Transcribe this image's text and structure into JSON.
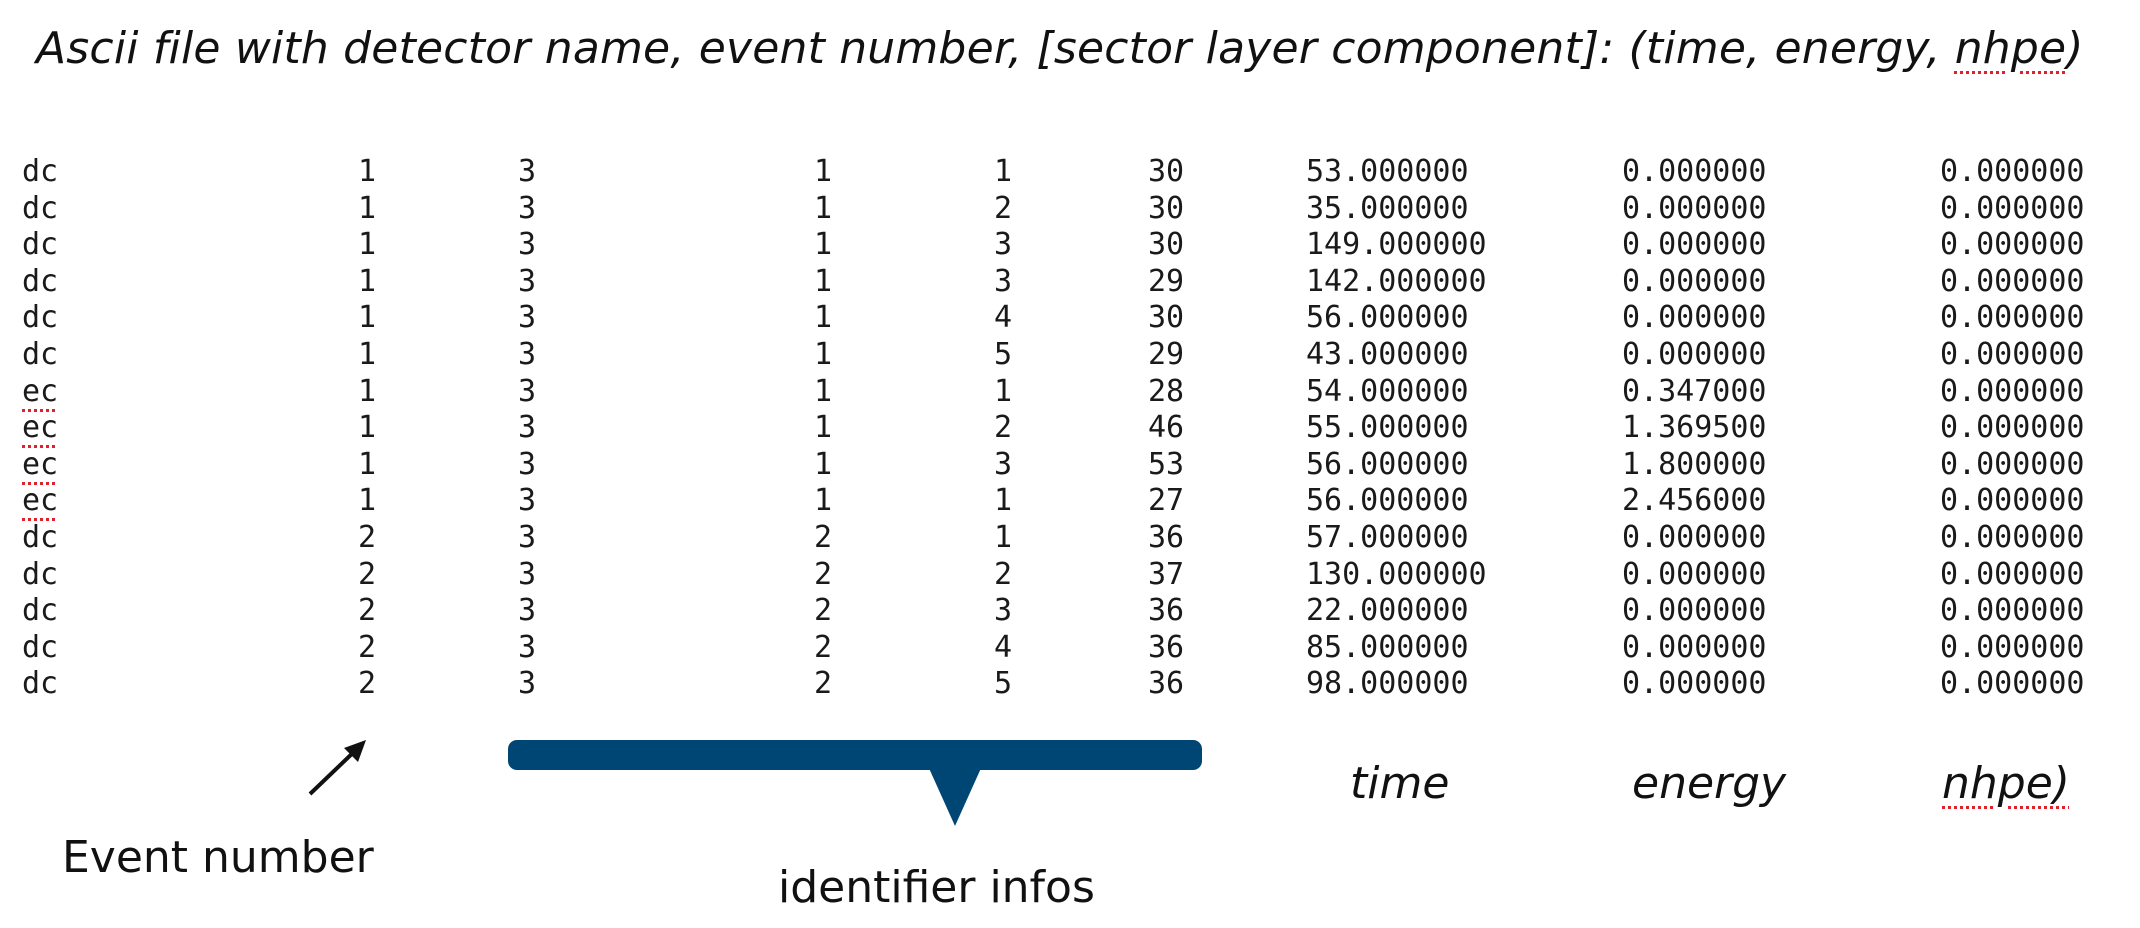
{
  "heading": {
    "prefix": "Ascii file with detector name, event number, [sector layer component]:  (time, energy, ",
    "squiggle_word": "nhpe",
    "suffix": ")"
  },
  "rows": [
    {
      "detector": "dc",
      "event": "1",
      "sector": "3",
      "layer": "1",
      "component": "1",
      "adc": "30",
      "time": "53.000000",
      "energy": "0.000000",
      "nhpe": "0.000000"
    },
    {
      "detector": "dc",
      "event": "1",
      "sector": "3",
      "layer": "1",
      "component": "2",
      "adc": "30",
      "time": "35.000000",
      "energy": "0.000000",
      "nhpe": "0.000000"
    },
    {
      "detector": "dc",
      "event": "1",
      "sector": "3",
      "layer": "1",
      "component": "3",
      "adc": "30",
      "time": "149.000000",
      "energy": "0.000000",
      "nhpe": "0.000000"
    },
    {
      "detector": "dc",
      "event": "1",
      "sector": "3",
      "layer": "1",
      "component": "3",
      "adc": "29",
      "time": "142.000000",
      "energy": "0.000000",
      "nhpe": "0.000000"
    },
    {
      "detector": "dc",
      "event": "1",
      "sector": "3",
      "layer": "1",
      "component": "4",
      "adc": "30",
      "time": "56.000000",
      "energy": "0.000000",
      "nhpe": "0.000000"
    },
    {
      "detector": "dc",
      "event": "1",
      "sector": "3",
      "layer": "1",
      "component": "5",
      "adc": "29",
      "time": "43.000000",
      "energy": "0.000000",
      "nhpe": "0.000000"
    },
    {
      "detector": "ec",
      "event": "1",
      "sector": "3",
      "layer": "1",
      "component": "1",
      "adc": "28",
      "time": "54.000000",
      "energy": "0.347000",
      "nhpe": "0.000000"
    },
    {
      "detector": "ec",
      "event": "1",
      "sector": "3",
      "layer": "1",
      "component": "2",
      "adc": "46",
      "time": "55.000000",
      "energy": "1.369500",
      "nhpe": "0.000000"
    },
    {
      "detector": "ec",
      "event": "1",
      "sector": "3",
      "layer": "1",
      "component": "3",
      "adc": "53",
      "time": "56.000000",
      "energy": "1.800000",
      "nhpe": "0.000000"
    },
    {
      "detector": "ec",
      "event": "1",
      "sector": "3",
      "layer": "1",
      "component": "1",
      "adc": "27",
      "time": "56.000000",
      "energy": "2.456000",
      "nhpe": "0.000000"
    },
    {
      "detector": "dc",
      "event": "2",
      "sector": "3",
      "layer": "2",
      "component": "1",
      "adc": "36",
      "time": "57.000000",
      "energy": "0.000000",
      "nhpe": "0.000000"
    },
    {
      "detector": "dc",
      "event": "2",
      "sector": "3",
      "layer": "2",
      "component": "2",
      "adc": "37",
      "time": "130.000000",
      "energy": "0.000000",
      "nhpe": "0.000000"
    },
    {
      "detector": "dc",
      "event": "2",
      "sector": "3",
      "layer": "2",
      "component": "3",
      "adc": "36",
      "time": "22.000000",
      "energy": "0.000000",
      "nhpe": "0.000000"
    },
    {
      "detector": "dc",
      "event": "2",
      "sector": "3",
      "layer": "2",
      "component": "4",
      "adc": "36",
      "time": "85.000000",
      "energy": "0.000000",
      "nhpe": "0.000000"
    },
    {
      "detector": "dc",
      "event": "2",
      "sector": "3",
      "layer": "2",
      "component": "5",
      "adc": "36",
      "time": "98.000000",
      "energy": "0.000000",
      "nhpe": "0.000000"
    }
  ],
  "annotations": {
    "event_number": "Event number",
    "identifier_infos": "identifier infos",
    "time": "time",
    "energy": "energy",
    "nhpe": "nhpe)"
  },
  "colors": {
    "bracket": "#004674",
    "spellcheck_underline": "#e0202a",
    "text": "#111111"
  },
  "icons": {
    "event_arrow": "arrow-up-right-icon",
    "identifier_bracket": "brace-bracket-icon"
  }
}
